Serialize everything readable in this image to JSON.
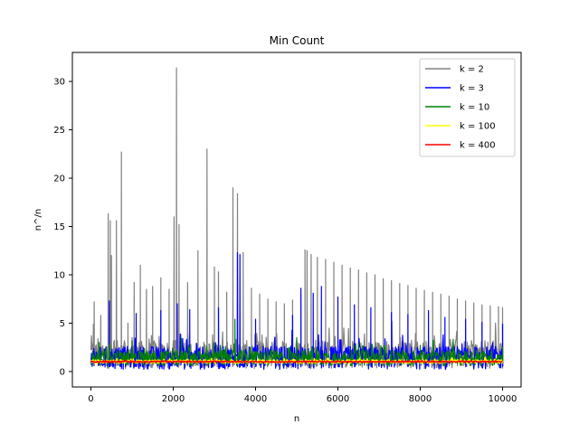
{
  "chart_data": {
    "type": "line",
    "title": "Min Count",
    "xlabel": "n",
    "ylabel": "n^/n",
    "xlim": [
      -450,
      10450
    ],
    "ylim": [
      -1.6,
      33.0
    ],
    "xticks": [
      0,
      2000,
      4000,
      6000,
      8000,
      10000
    ],
    "xtick_labels": [
      "0",
      "2000",
      "4000",
      "6000",
      "8000",
      "10000"
    ],
    "yticks": [
      0,
      5,
      10,
      15,
      20,
      25,
      30
    ],
    "ytick_labels": [
      "0",
      "5",
      "10",
      "15",
      "20",
      "25",
      "30"
    ],
    "grid": false,
    "legend_position": "top-right",
    "series": [
      {
        "name": "k = 2",
        "color": "#808080",
        "base_low": 0.3,
        "base_high": 3.2,
        "spikes": [
          [
            60,
            4.9
          ],
          [
            80,
            7.2
          ],
          [
            240,
            5.8
          ],
          [
            420,
            16.3
          ],
          [
            470,
            15.6
          ],
          [
            500,
            12.0
          ],
          [
            620,
            15.6
          ],
          [
            740,
            22.7
          ],
          [
            900,
            5.0
          ],
          [
            1050,
            9.2
          ],
          [
            1200,
            11.0
          ],
          [
            1350,
            8.5
          ],
          [
            1500,
            8.8
          ],
          [
            1700,
            9.7
          ],
          [
            1900,
            8.5
          ],
          [
            2020,
            16.0
          ],
          [
            2080,
            31.4
          ],
          [
            2140,
            15.2
          ],
          [
            2350,
            9.2
          ],
          [
            2600,
            12.5
          ],
          [
            2820,
            23.0
          ],
          [
            3000,
            10.8
          ],
          [
            3100,
            10.3
          ],
          [
            3300,
            8.2
          ],
          [
            3450,
            19.0
          ],
          [
            3560,
            18.4
          ],
          [
            3700,
            12.3
          ],
          [
            3900,
            8.6
          ],
          [
            4100,
            8.0
          ],
          [
            4300,
            7.5
          ],
          [
            4500,
            7.2
          ],
          [
            4700,
            7.0
          ],
          [
            4900,
            7.4
          ],
          [
            5100,
            8.0
          ],
          [
            5200,
            12.6
          ],
          [
            5250,
            12.5
          ],
          [
            5350,
            12.1
          ],
          [
            5500,
            11.8
          ],
          [
            5700,
            11.6
          ],
          [
            5900,
            11.3
          ],
          [
            6100,
            11.0
          ],
          [
            6300,
            10.7
          ],
          [
            6500,
            10.5
          ],
          [
            6700,
            10.2
          ],
          [
            6900,
            10.0
          ],
          [
            7100,
            9.6
          ],
          [
            7300,
            9.4
          ],
          [
            7500,
            9.1
          ],
          [
            7700,
            8.9
          ],
          [
            7900,
            8.6
          ],
          [
            8100,
            8.4
          ],
          [
            8300,
            8.2
          ],
          [
            8500,
            8.0
          ],
          [
            8700,
            7.8
          ],
          [
            8900,
            7.5
          ],
          [
            9100,
            7.3
          ],
          [
            9300,
            7.1
          ],
          [
            9500,
            6.9
          ],
          [
            9700,
            6.8
          ],
          [
            9900,
            6.7
          ],
          [
            10000,
            6.6
          ]
        ]
      },
      {
        "name": "k = 3",
        "color": "#0000ff",
        "base_low": 0.2,
        "base_high": 2.6,
        "spikes": [
          [
            450,
            7.3
          ],
          [
            1100,
            6.0
          ],
          [
            1700,
            6.3
          ],
          [
            2100,
            7.0
          ],
          [
            2400,
            6.4
          ],
          [
            3100,
            6.6
          ],
          [
            3560,
            12.3
          ],
          [
            3620,
            12.1
          ],
          [
            4000,
            5.4
          ],
          [
            4900,
            5.8
          ],
          [
            5100,
            8.6
          ],
          [
            5400,
            8.1
          ],
          [
            5600,
            8.8
          ],
          [
            6000,
            7.7
          ],
          [
            6400,
            6.9
          ],
          [
            6800,
            6.6
          ],
          [
            7300,
            6.1
          ],
          [
            7700,
            5.9
          ],
          [
            8200,
            6.3
          ],
          [
            8600,
            5.6
          ],
          [
            9100,
            5.4
          ],
          [
            9500,
            5.1
          ],
          [
            10000,
            4.9
          ]
        ]
      },
      {
        "name": "k = 10",
        "color": "#008000",
        "base_low": 0.6,
        "base_high": 2.2,
        "spikes": [
          [
            200,
            3.0
          ],
          [
            1000,
            3.2
          ],
          [
            2200,
            3.4
          ],
          [
            3500,
            5.4
          ],
          [
            5000,
            3.5
          ],
          [
            6500,
            2.9
          ],
          [
            8000,
            2.7
          ],
          [
            10000,
            2.5
          ]
        ]
      },
      {
        "name": "k = 100",
        "color": "#ffff00",
        "base_low": 0.85,
        "base_high": 1.2,
        "spikes": []
      },
      {
        "name": "k = 400",
        "color": "#ff0000",
        "base_low": 0.95,
        "base_high": 1.08,
        "spikes": []
      }
    ]
  }
}
